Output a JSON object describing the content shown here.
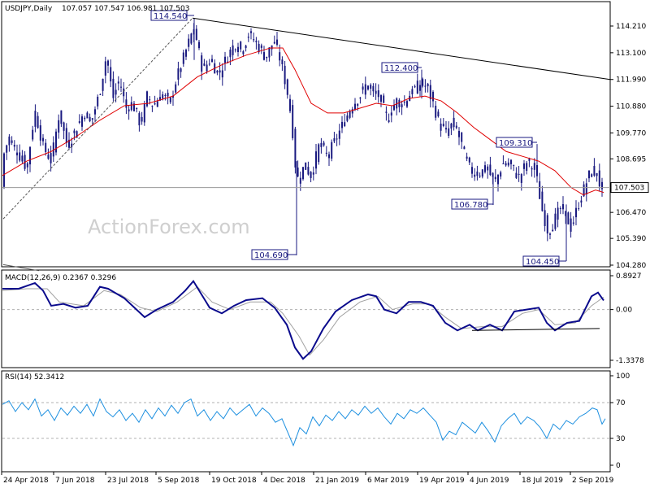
{
  "header": {
    "symbol": "USDJPY,Daily",
    "ohlc": "107.057 107.547 106.981 107.503"
  },
  "watermark": "ActionForex.com",
  "colors": {
    "candle": "#1a1a80",
    "ma": "#e00000",
    "trendline": "#000000",
    "macd_main": "#0a0a8c",
    "macd_signal": "#a0a0a0",
    "rsi": "#1e90e0",
    "grid": "#b0b0b0"
  },
  "chart_data": [
    {
      "type": "candlestick",
      "panel": "price",
      "yticks": [
        "114.210",
        "113.100",
        "111.990",
        "110.880",
        "109.770",
        "108.695",
        "107.503",
        "106.470",
        "105.390",
        "104.280"
      ],
      "ylim": [
        104.28,
        114.21
      ],
      "last_price": "107.503",
      "annotations": [
        {
          "label": "114.540",
          "value": 114.54
        },
        {
          "label": "112.400",
          "value": 112.4
        },
        {
          "label": "109.310",
          "value": 109.31
        },
        {
          "label": "106.780",
          "value": 106.78
        },
        {
          "label": "104.690",
          "value": 104.69
        },
        {
          "label": "104.450",
          "value": 104.45
        }
      ],
      "xticks": [
        "24 Apr 2018",
        "7 Jun 2018",
        "23 Jul 2018",
        "5 Sep 2018",
        "19 Oct 2018",
        "4 Dec 2018",
        "21 Jan 2019",
        "6 Mar 2019",
        "19 Apr 2019",
        "4 Jun 2019",
        "18 Jul 2019",
        "2 Sep 2019"
      ],
      "close_path": [
        [
          0,
          108.7
        ],
        [
          8,
          109.6
        ],
        [
          18,
          109.0
        ],
        [
          30,
          108.3
        ],
        [
          40,
          110.7
        ],
        [
          50,
          109.2
        ],
        [
          60,
          108.6
        ],
        [
          70,
          110.6
        ],
        [
          80,
          109.2
        ],
        [
          90,
          109.9
        ],
        [
          100,
          110.6
        ],
        [
          110,
          110.3
        ],
        [
          120,
          111.5
        ],
        [
          128,
          113.0
        ],
        [
          136,
          111.2
        ],
        [
          144,
          112.0
        ],
        [
          152,
          110.8
        ],
        [
          160,
          111.0
        ],
        [
          170,
          110.1
        ],
        [
          178,
          111.3
        ],
        [
          186,
          110.9
        ],
        [
          196,
          111.4
        ],
        [
          206,
          111.0
        ],
        [
          214,
          112.0
        ],
        [
          224,
          113.0
        ],
        [
          234,
          114.0
        ],
        [
          238,
          113.8
        ],
        [
          246,
          112.4
        ],
        [
          256,
          112.8
        ],
        [
          266,
          112.2
        ],
        [
          276,
          112.9
        ],
        [
          286,
          113.5
        ],
        [
          294,
          113.2
        ],
        [
          304,
          113.9
        ],
        [
          314,
          113.4
        ],
        [
          324,
          112.9
        ],
        [
          334,
          113.6
        ],
        [
          342,
          112.8
        ],
        [
          350,
          111.6
        ],
        [
          356,
          110.3
        ],
        [
          362,
          107.8
        ],
        [
          372,
          108.4
        ],
        [
          380,
          108.0
        ],
        [
          390,
          109.3
        ],
        [
          400,
          108.8
        ],
        [
          410,
          109.5
        ],
        [
          420,
          110.2
        ],
        [
          430,
          110.9
        ],
        [
          440,
          111.3
        ],
        [
          448,
          111.8
        ],
        [
          456,
          111.4
        ],
        [
          464,
          111.3
        ],
        [
          474,
          110.3
        ],
        [
          484,
          111.1
        ],
        [
          494,
          111.0
        ],
        [
          504,
          111.5
        ],
        [
          514,
          111.8
        ],
        [
          522,
          111.7
        ],
        [
          530,
          111.0
        ],
        [
          538,
          110.1
        ],
        [
          546,
          109.8
        ],
        [
          556,
          110.2
        ],
        [
          566,
          109.2
        ],
        [
          576,
          108.2
        ],
        [
          586,
          108.1
        ],
        [
          596,
          108.3
        ],
        [
          606,
          107.7
        ],
        [
          616,
          108.5
        ],
        [
          626,
          108.4
        ],
        [
          636,
          107.9
        ],
        [
          646,
          108.6
        ],
        [
          656,
          108.2
        ],
        [
          664,
          106.6
        ],
        [
          672,
          105.6
        ],
        [
          680,
          106.2
        ],
        [
          688,
          106.7
        ],
        [
          694,
          106.3
        ],
        [
          700,
          105.8
        ],
        [
          706,
          106.5
        ],
        [
          714,
          107.3
        ],
        [
          722,
          108.0
        ],
        [
          730,
          108.3
        ],
        [
          736,
          107.5
        ],
        [
          740,
          107.5
        ]
      ],
      "ma_path": [
        [
          0,
          108.0
        ],
        [
          30,
          108.6
        ],
        [
          60,
          109.0
        ],
        [
          90,
          109.6
        ],
        [
          120,
          110.3
        ],
        [
          150,
          110.9
        ],
        [
          180,
          111.0
        ],
        [
          210,
          111.3
        ],
        [
          240,
          112.1
        ],
        [
          270,
          112.6
        ],
        [
          300,
          113.0
        ],
        [
          330,
          113.3
        ],
        [
          345,
          113.3
        ],
        [
          360,
          112.4
        ],
        [
          380,
          111.0
        ],
        [
          400,
          110.6
        ],
        [
          420,
          110.6
        ],
        [
          440,
          110.8
        ],
        [
          460,
          111.0
        ],
        [
          480,
          110.9
        ],
        [
          500,
          111.2
        ],
        [
          520,
          111.3
        ],
        [
          540,
          111.1
        ],
        [
          560,
          110.6
        ],
        [
          580,
          110.0
        ],
        [
          600,
          109.5
        ],
        [
          620,
          109.0
        ],
        [
          640,
          108.8
        ],
        [
          660,
          108.6
        ],
        [
          680,
          108.2
        ],
        [
          700,
          107.5
        ],
        [
          715,
          107.2
        ],
        [
          730,
          107.4
        ],
        [
          740,
          107.3
        ]
      ]
    },
    {
      "type": "line",
      "panel": "macd",
      "label": "MACD(12,26,9) 0.2367 0.3296",
      "yticks": [
        "0.8927",
        "0.00",
        "-1.3378"
      ],
      "ylim": [
        -1.3378,
        0.8927
      ],
      "main_path": [
        [
          0,
          0.55
        ],
        [
          20,
          0.55
        ],
        [
          40,
          0.7
        ],
        [
          50,
          0.5
        ],
        [
          60,
          0.1
        ],
        [
          75,
          0.15
        ],
        [
          90,
          0.05
        ],
        [
          105,
          0.1
        ],
        [
          120,
          0.6
        ],
        [
          130,
          0.55
        ],
        [
          150,
          0.3
        ],
        [
          165,
          0.0
        ],
        [
          175,
          -0.2
        ],
        [
          190,
          0.0
        ],
        [
          210,
          0.2
        ],
        [
          225,
          0.5
        ],
        [
          235,
          0.75
        ],
        [
          245,
          0.4
        ],
        [
          255,
          0.05
        ],
        [
          270,
          -0.1
        ],
        [
          285,
          0.1
        ],
        [
          300,
          0.25
        ],
        [
          320,
          0.3
        ],
        [
          335,
          0.05
        ],
        [
          350,
          -0.4
        ],
        [
          360,
          -1.0
        ],
        [
          370,
          -1.3
        ],
        [
          380,
          -1.1
        ],
        [
          395,
          -0.5
        ],
        [
          410,
          -0.05
        ],
        [
          430,
          0.25
        ],
        [
          450,
          0.4
        ],
        [
          460,
          0.35
        ],
        [
          470,
          0.0
        ],
        [
          485,
          -0.1
        ],
        [
          500,
          0.2
        ],
        [
          515,
          0.2
        ],
        [
          530,
          0.1
        ],
        [
          545,
          -0.35
        ],
        [
          560,
          -0.55
        ],
        [
          575,
          -0.4
        ],
        [
          585,
          -0.55
        ],
        [
          600,
          -0.4
        ],
        [
          615,
          -0.55
        ],
        [
          630,
          -0.05
        ],
        [
          645,
          0.0
        ],
        [
          660,
          0.05
        ],
        [
          670,
          -0.35
        ],
        [
          680,
          -0.55
        ],
        [
          695,
          -0.35
        ],
        [
          710,
          -0.3
        ],
        [
          725,
          0.35
        ],
        [
          733,
          0.45
        ],
        [
          740,
          0.24
        ]
      ],
      "signal_path": [
        [
          0,
          0.5
        ],
        [
          30,
          0.55
        ],
        [
          55,
          0.55
        ],
        [
          70,
          0.2
        ],
        [
          100,
          0.1
        ],
        [
          125,
          0.5
        ],
        [
          145,
          0.4
        ],
        [
          170,
          0.05
        ],
        [
          190,
          -0.05
        ],
        [
          215,
          0.2
        ],
        [
          240,
          0.6
        ],
        [
          258,
          0.2
        ],
        [
          280,
          0.0
        ],
        [
          305,
          0.2
        ],
        [
          330,
          0.2
        ],
        [
          345,
          -0.1
        ],
        [
          365,
          -0.7
        ],
        [
          378,
          -1.2
        ],
        [
          395,
          -0.8
        ],
        [
          415,
          -0.2
        ],
        [
          440,
          0.2
        ],
        [
          462,
          0.35
        ],
        [
          480,
          0.0
        ],
        [
          505,
          0.15
        ],
        [
          525,
          0.15
        ],
        [
          545,
          -0.2
        ],
        [
          565,
          -0.5
        ],
        [
          590,
          -0.45
        ],
        [
          615,
          -0.45
        ],
        [
          640,
          -0.1
        ],
        [
          660,
          0.0
        ],
        [
          680,
          -0.4
        ],
        [
          705,
          -0.35
        ],
        [
          725,
          0.1
        ],
        [
          740,
          0.33
        ]
      ],
      "support_line": [
        [
          578,
          -0.55
        ],
        [
          735,
          -0.5
        ]
      ]
    },
    {
      "type": "line",
      "panel": "rsi",
      "label": "RSI(14) 52.3412",
      "yticks": [
        "100",
        "70",
        "30",
        "0"
      ],
      "levels": [
        70,
        30
      ],
      "ylim": [
        0,
        100
      ],
      "rsi_path": [
        [
          0,
          68
        ],
        [
          8,
          72
        ],
        [
          16,
          60
        ],
        [
          24,
          70
        ],
        [
          32,
          62
        ],
        [
          40,
          74
        ],
        [
          48,
          55
        ],
        [
          56,
          62
        ],
        [
          64,
          50
        ],
        [
          72,
          64
        ],
        [
          80,
          56
        ],
        [
          88,
          66
        ],
        [
          96,
          58
        ],
        [
          104,
          68
        ],
        [
          112,
          55
        ],
        [
          120,
          74
        ],
        [
          128,
          60
        ],
        [
          136,
          54
        ],
        [
          144,
          62
        ],
        [
          152,
          50
        ],
        [
          160,
          58
        ],
        [
          168,
          48
        ],
        [
          176,
          62
        ],
        [
          184,
          52
        ],
        [
          192,
          64
        ],
        [
          200,
          55
        ],
        [
          208,
          67
        ],
        [
          216,
          58
        ],
        [
          224,
          70
        ],
        [
          232,
          74
        ],
        [
          240,
          55
        ],
        [
          248,
          62
        ],
        [
          256,
          50
        ],
        [
          264,
          60
        ],
        [
          272,
          52
        ],
        [
          280,
          64
        ],
        [
          288,
          56
        ],
        [
          296,
          62
        ],
        [
          304,
          68
        ],
        [
          312,
          55
        ],
        [
          320,
          64
        ],
        [
          328,
          58
        ],
        [
          336,
          48
        ],
        [
          344,
          52
        ],
        [
          352,
          35
        ],
        [
          358,
          22
        ],
        [
          366,
          42
        ],
        [
          374,
          35
        ],
        [
          382,
          54
        ],
        [
          390,
          44
        ],
        [
          398,
          56
        ],
        [
          406,
          50
        ],
        [
          414,
          60
        ],
        [
          422,
          52
        ],
        [
          430,
          62
        ],
        [
          438,
          56
        ],
        [
          446,
          66
        ],
        [
          454,
          58
        ],
        [
          462,
          64
        ],
        [
          470,
          54
        ],
        [
          478,
          46
        ],
        [
          486,
          58
        ],
        [
          494,
          52
        ],
        [
          502,
          62
        ],
        [
          510,
          58
        ],
        [
          518,
          64
        ],
        [
          526,
          56
        ],
        [
          534,
          48
        ],
        [
          542,
          28
        ],
        [
          550,
          38
        ],
        [
          558,
          34
        ],
        [
          566,
          48
        ],
        [
          574,
          42
        ],
        [
          582,
          36
        ],
        [
          590,
          48
        ],
        [
          598,
          38
        ],
        [
          606,
          26
        ],
        [
          614,
          44
        ],
        [
          622,
          52
        ],
        [
          630,
          58
        ],
        [
          638,
          46
        ],
        [
          646,
          54
        ],
        [
          654,
          50
        ],
        [
          662,
          42
        ],
        [
          670,
          30
        ],
        [
          678,
          46
        ],
        [
          686,
          40
        ],
        [
          694,
          50
        ],
        [
          702,
          46
        ],
        [
          710,
          54
        ],
        [
          718,
          58
        ],
        [
          726,
          64
        ],
        [
          732,
          62
        ],
        [
          738,
          46
        ],
        [
          742,
          52
        ]
      ]
    }
  ]
}
